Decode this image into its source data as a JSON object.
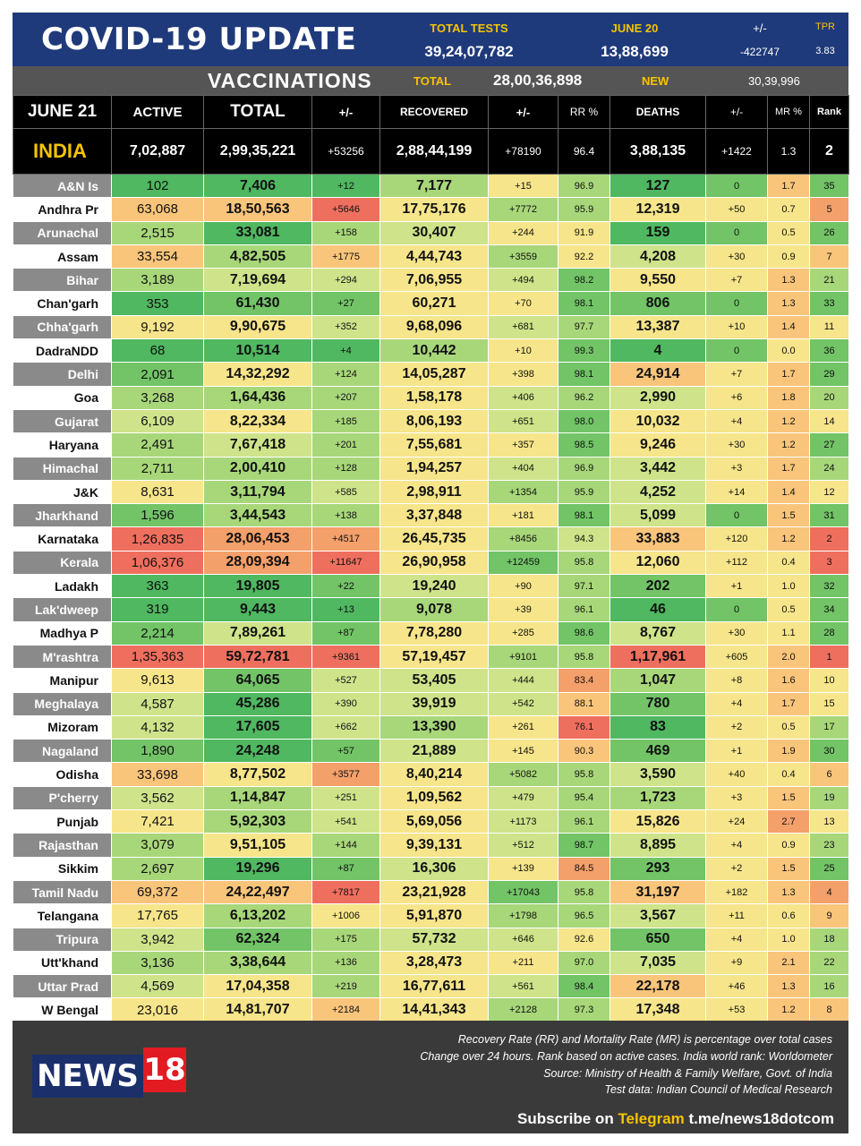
{
  "header": {
    "title": "COVID-19 UPDATE",
    "total_tests_label": "TOTAL TESTS",
    "total_tests_value": "39,24,07,782",
    "date_label": "JUNE 20",
    "date_value": "13,88,699",
    "change_label": "+/-",
    "change_value": "-422747",
    "tpr_label": "TPR",
    "tpr_value": "3.83"
  },
  "vaccinations": {
    "title": "VACCINATIONS",
    "total_label": "TOTAL",
    "total_value": "28,00,36,898",
    "new_label": "NEW",
    "new_value": "30,39,996"
  },
  "columns": [
    "JUNE 21",
    "ACTIVE",
    "TOTAL",
    "+/-",
    "RECOVERED",
    "+/-",
    "RR %",
    "DEATHS",
    "+/-",
    "MR %",
    "Rank"
  ],
  "colors": {
    "dark_green": "#4fb860",
    "green": "#72c467",
    "light_green": "#a8d77a",
    "pale_green": "#cfe38a",
    "yellow": "#f6e58a",
    "light_orange": "#f9c57b",
    "orange": "#f4a06a",
    "red": "#ef6f5f",
    "header_blue": "#1f3a7a",
    "accent_yellow": "#f5c400"
  },
  "india": {
    "name": "INDIA",
    "active": "7,02,887",
    "total": "2,99,35,221",
    "total_chg": "+53256",
    "recovered": "2,88,44,199",
    "rec_chg": "+78190",
    "rr": "96.4",
    "deaths": "3,88,135",
    "death_chg": "+1422",
    "mr": "1.3",
    "rank": "2"
  },
  "states": [
    {
      "name": "A&N Is",
      "v": [
        "102",
        "7,406",
        "+12",
        "7,177",
        "+15",
        "96.9",
        "127",
        "0",
        "1.7",
        "35"
      ]
    },
    {
      "name": "Andhra Pr",
      "v": [
        "63,068",
        "18,50,563",
        "+5646",
        "17,75,176",
        "+7772",
        "95.9",
        "12,319",
        "+50",
        "0.7",
        "5"
      ]
    },
    {
      "name": "Arunachal",
      "v": [
        "2,515",
        "33,081",
        "+158",
        "30,407",
        "+244",
        "91.9",
        "159",
        "0",
        "0.5",
        "26"
      ]
    },
    {
      "name": "Assam",
      "v": [
        "33,554",
        "4,82,505",
        "+1775",
        "4,44,743",
        "+3559",
        "92.2",
        "4,208",
        "+30",
        "0.9",
        "7"
      ]
    },
    {
      "name": "Bihar",
      "v": [
        "3,189",
        "7,19,694",
        "+294",
        "7,06,955",
        "+494",
        "98.2",
        "9,550",
        "+7",
        "1.3",
        "21"
      ]
    },
    {
      "name": "Chan'garh",
      "v": [
        "353",
        "61,430",
        "+27",
        "60,271",
        "+70",
        "98.1",
        "806",
        "0",
        "1.3",
        "33"
      ]
    },
    {
      "name": "Chha'garh",
      "v": [
        "9,192",
        "9,90,675",
        "+352",
        "9,68,096",
        "+681",
        "97.7",
        "13,387",
        "+10",
        "1.4",
        "11"
      ]
    },
    {
      "name": "DadraNDD",
      "v": [
        "68",
        "10,514",
        "+4",
        "10,442",
        "+10",
        "99.3",
        "4",
        "0",
        "0.0",
        "36"
      ]
    },
    {
      "name": "Delhi",
      "v": [
        "2,091",
        "14,32,292",
        "+124",
        "14,05,287",
        "+398",
        "98.1",
        "24,914",
        "+7",
        "1.7",
        "29"
      ]
    },
    {
      "name": "Goa",
      "v": [
        "3,268",
        "1,64,436",
        "+207",
        "1,58,178",
        "+406",
        "96.2",
        "2,990",
        "+6",
        "1.8",
        "20"
      ]
    },
    {
      "name": "Gujarat",
      "v": [
        "6,109",
        "8,22,334",
        "+185",
        "8,06,193",
        "+651",
        "98.0",
        "10,032",
        "+4",
        "1.2",
        "14"
      ]
    },
    {
      "name": "Haryana",
      "v": [
        "2,491",
        "7,67,418",
        "+201",
        "7,55,681",
        "+357",
        "98.5",
        "9,246",
        "+30",
        "1.2",
        "27"
      ]
    },
    {
      "name": "Himachal",
      "v": [
        "2,711",
        "2,00,410",
        "+128",
        "1,94,257",
        "+404",
        "96.9",
        "3,442",
        "+3",
        "1.7",
        "24"
      ]
    },
    {
      "name": "J&K",
      "v": [
        "8,631",
        "3,11,794",
        "+585",
        "2,98,911",
        "+1354",
        "95.9",
        "4,252",
        "+14",
        "1.4",
        "12"
      ]
    },
    {
      "name": "Jharkhand",
      "v": [
        "1,596",
        "3,44,543",
        "+138",
        "3,37,848",
        "+181",
        "98.1",
        "5,099",
        "0",
        "1.5",
        "31"
      ]
    },
    {
      "name": "Karnataka",
      "v": [
        "1,26,835",
        "28,06,453",
        "+4517",
        "26,45,735",
        "+8456",
        "94.3",
        "33,883",
        "+120",
        "1.2",
        "2"
      ]
    },
    {
      "name": "Kerala",
      "v": [
        "1,06,376",
        "28,09,394",
        "+11647",
        "26,90,958",
        "+12459",
        "95.8",
        "12,060",
        "+112",
        "0.4",
        "3"
      ]
    },
    {
      "name": "Ladakh",
      "v": [
        "363",
        "19,805",
        "+22",
        "19,240",
        "+90",
        "97.1",
        "202",
        "+1",
        "1.0",
        "32"
      ]
    },
    {
      "name": "Lak'dweep",
      "v": [
        "319",
        "9,443",
        "+13",
        "9,078",
        "+39",
        "96.1",
        "46",
        "0",
        "0.5",
        "34"
      ]
    },
    {
      "name": "Madhya P",
      "v": [
        "2,214",
        "7,89,261",
        "+87",
        "7,78,280",
        "+285",
        "98.6",
        "8,767",
        "+30",
        "1.1",
        "28"
      ]
    },
    {
      "name": "M'rashtra",
      "v": [
        "1,35,363",
        "59,72,781",
        "+9361",
        "57,19,457",
        "+9101",
        "95.8",
        "1,17,961",
        "+605",
        "2.0",
        "1"
      ]
    },
    {
      "name": "Manipur",
      "v": [
        "9,613",
        "64,065",
        "+527",
        "53,405",
        "+444",
        "83.4",
        "1,047",
        "+8",
        "1.6",
        "10"
      ]
    },
    {
      "name": "Meghalaya",
      "v": [
        "4,587",
        "45,286",
        "+390",
        "39,919",
        "+542",
        "88.1",
        "780",
        "+4",
        "1.7",
        "15"
      ]
    },
    {
      "name": "Mizoram",
      "v": [
        "4,132",
        "17,605",
        "+662",
        "13,390",
        "+261",
        "76.1",
        "83",
        "+2",
        "0.5",
        "17"
      ]
    },
    {
      "name": "Nagaland",
      "v": [
        "1,890",
        "24,248",
        "+57",
        "21,889",
        "+145",
        "90.3",
        "469",
        "+1",
        "1.9",
        "30"
      ]
    },
    {
      "name": "Odisha",
      "v": [
        "33,698",
        "8,77,502",
        "+3577",
        "8,40,214",
        "+5082",
        "95.8",
        "3,590",
        "+40",
        "0.4",
        "6"
      ]
    },
    {
      "name": "P'cherry",
      "v": [
        "3,562",
        "1,14,847",
        "+251",
        "1,09,562",
        "+479",
        "95.4",
        "1,723",
        "+3",
        "1.5",
        "19"
      ]
    },
    {
      "name": "Punjab",
      "v": [
        "7,421",
        "5,92,303",
        "+541",
        "5,69,056",
        "+1173",
        "96.1",
        "15,826",
        "+24",
        "2.7",
        "13"
      ]
    },
    {
      "name": "Rajasthan",
      "v": [
        "3,079",
        "9,51,105",
        "+144",
        "9,39,131",
        "+512",
        "98.7",
        "8,895",
        "+4",
        "0.9",
        "23"
      ]
    },
    {
      "name": "Sikkim",
      "v": [
        "2,697",
        "19,296",
        "+87",
        "16,306",
        "+139",
        "84.5",
        "293",
        "+2",
        "1.5",
        "25"
      ]
    },
    {
      "name": "Tamil Nadu",
      "v": [
        "69,372",
        "24,22,497",
        "+7817",
        "23,21,928",
        "+17043",
        "95.8",
        "31,197",
        "+182",
        "1.3",
        "4"
      ]
    },
    {
      "name": "Telangana",
      "v": [
        "17,765",
        "6,13,202",
        "+1006",
        "5,91,870",
        "+1798",
        "96.5",
        "3,567",
        "+11",
        "0.6",
        "9"
      ]
    },
    {
      "name": "Tripura",
      "v": [
        "3,942",
        "62,324",
        "+175",
        "57,732",
        "+646",
        "92.6",
        "650",
        "+4",
        "1.0",
        "18"
      ]
    },
    {
      "name": "Utt'khand",
      "v": [
        "3,136",
        "3,38,644",
        "+136",
        "3,28,473",
        "+211",
        "97.0",
        "7,035",
        "+9",
        "2.1",
        "22"
      ]
    },
    {
      "name": "Uttar Prad",
      "v": [
        "4,569",
        "17,04,358",
        "+219",
        "16,77,611",
        "+561",
        "98.4",
        "22,178",
        "+46",
        "1.3",
        "16"
      ]
    },
    {
      "name": "W Bengal",
      "v": [
        "23,016",
        "14,81,707",
        "+2184",
        "14,41,343",
        "+2128",
        "97.3",
        "17,348",
        "+53",
        "1.2",
        "8"
      ]
    }
  ],
  "footer": {
    "logo_text": "NEWS",
    "logo_number": "18",
    "notes": [
      "Recovery Rate (RR) and Mortality Rate (MR) is percentage over total cases",
      "Change over 24 hours. Rank based on active cases. India world rank: Worldometer",
      "Source: Ministry of Health & Family Welfare, Govt. of India",
      "Test data: Indian Council of Medical Research"
    ],
    "subscribe_prefix": "Subscribe on",
    "subscribe_platform": "Telegram",
    "subscribe_link": "t.me/news18dotcom"
  }
}
